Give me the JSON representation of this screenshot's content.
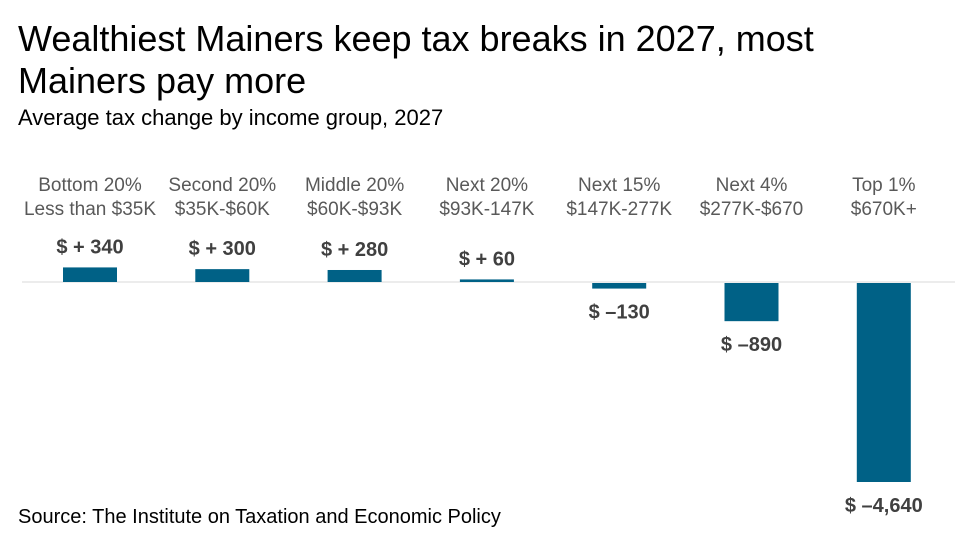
{
  "title": "Wealthiest Mainers keep tax breaks in 2027, most Mainers pay more",
  "subtitle": "Average tax change by income group, 2027",
  "source": "Source: The Institute on Taxation and Economic Policy",
  "colors": {
    "bar": "#006186",
    "baseline": "#d9d9d9",
    "category_text": "#595959",
    "value_text": "#404040"
  },
  "chart_data": {
    "type": "bar",
    "title": "Wealthiest Mainers keep tax breaks in 2027, most Mainers pay more",
    "subtitle": "Average tax change by income group, 2027",
    "xlabel": "",
    "ylabel": "",
    "grid": false,
    "legend": "none",
    "categories": [
      [
        "Bottom 20%",
        "Less than $35K"
      ],
      [
        "Second 20%",
        "$35K-$60K"
      ],
      [
        "Middle 20%",
        "$60K-$93K"
      ],
      [
        "Next 20%",
        "$93K-147K"
      ],
      [
        "Next 15%",
        "$147K-277K"
      ],
      [
        "Next 4%",
        "$277K-$670"
      ],
      [
        "Top 1%",
        "$670K+"
      ]
    ],
    "values": [
      340,
      300,
      280,
      60,
      -130,
      -890,
      -4640
    ],
    "value_labels": [
      "$ + 340",
      "$ + 300",
      "$ + 280",
      "$ + 60",
      "$ –130",
      "$ –890",
      "$ –4,640"
    ],
    "ylim": [
      -4640,
      340
    ]
  }
}
